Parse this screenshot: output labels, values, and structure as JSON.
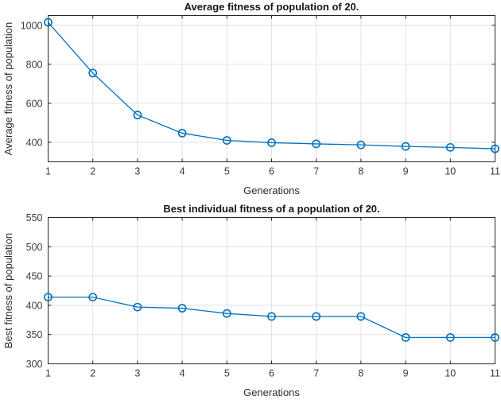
{
  "style": {
    "line_color": "#0072BD",
    "grid_color": "#e2e2e2",
    "axis_color": "#262626",
    "tick_label_color": "#3b3b3b",
    "background": "#ffffff"
  },
  "chart_data": [
    {
      "type": "line",
      "title": "Average fitness of population of 20.",
      "xlabel": "Generations",
      "ylabel": "Average fitness of population",
      "x": [
        1,
        2,
        3,
        4,
        5,
        6,
        7,
        8,
        9,
        10,
        11
      ],
      "values": [
        1015,
        755,
        540,
        447,
        410,
        398,
        392,
        387,
        379,
        374,
        367
      ],
      "xlim": [
        1,
        11
      ],
      "ylim": [
        300,
        1050
      ],
      "xticks": [
        1,
        2,
        3,
        4,
        5,
        6,
        7,
        8,
        9,
        10,
        11
      ],
      "yticks": [
        400,
        600,
        800,
        1000
      ],
      "grid": true,
      "legend": null,
      "marker": "circle"
    },
    {
      "type": "line",
      "title": "Best individual fitness of a population of 20.",
      "xlabel": "Generations",
      "ylabel": "Best fitness of population",
      "x": [
        1,
        2,
        3,
        4,
        5,
        6,
        7,
        8,
        9,
        10,
        11
      ],
      "values": [
        414,
        414,
        397,
        395,
        386,
        381,
        381,
        381,
        345,
        345,
        345
      ],
      "xlim": [
        1,
        11
      ],
      "ylim": [
        300,
        550
      ],
      "xticks": [
        1,
        2,
        3,
        4,
        5,
        6,
        7,
        8,
        9,
        10,
        11
      ],
      "yticks": [
        300,
        350,
        400,
        450,
        500,
        550
      ],
      "grid": true,
      "legend": null,
      "marker": "circle"
    }
  ]
}
